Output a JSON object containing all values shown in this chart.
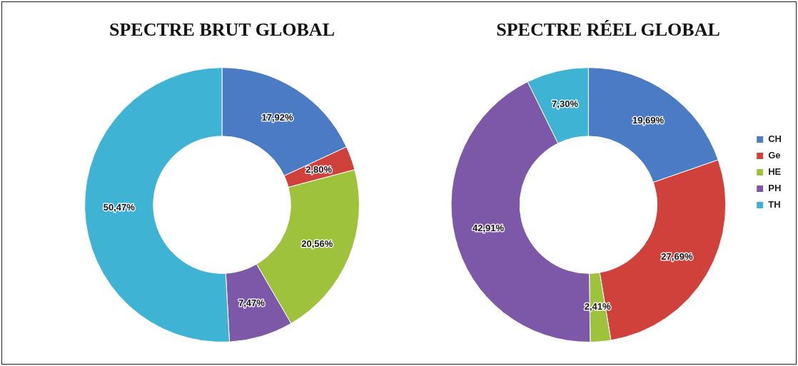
{
  "chart_data": [
    {
      "type": "donut",
      "title": "SPECTRE BRUT GLOBAL",
      "categories": [
        null,
        null,
        null,
        null,
        null
      ],
      "values": [
        17.92,
        2.8,
        20.56,
        7.47,
        50.47
      ],
      "value_labels": [
        "17,92%",
        "2,80%",
        "20,56%",
        "7,47%",
        "50,47%"
      ],
      "colors": [
        "#4a7bc4",
        "#d0413c",
        "#9fc23c",
        "#7e58a8",
        "#3fb3d4"
      ],
      "legend": false
    },
    {
      "type": "donut",
      "title": "SPECTRE RÉEL GLOBAL",
      "categories": [
        "CH",
        "Ge",
        "HE",
        "PH",
        "TH"
      ],
      "values": [
        19.69,
        27.69,
        2.41,
        42.91,
        7.3
      ],
      "value_labels": [
        "19,69%",
        "27,69%",
        "2,41%",
        "42,91%",
        "7,30%"
      ],
      "colors": [
        "#4a7bc4",
        "#d0413c",
        "#9fc23c",
        "#7e58a8",
        "#3fb3d4"
      ],
      "legend": "right"
    }
  ]
}
